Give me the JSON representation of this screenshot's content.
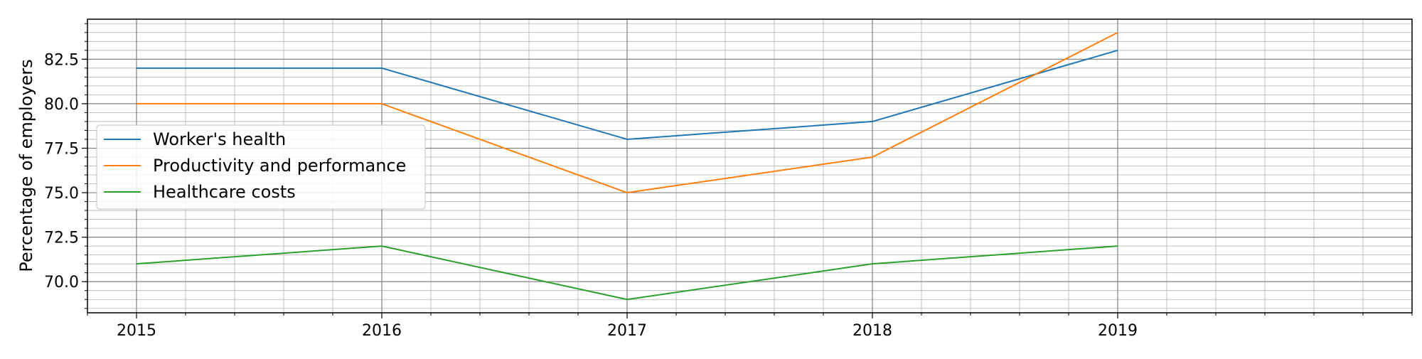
{
  "chart_data": {
    "type": "line",
    "title": "",
    "xlabel": "",
    "ylabel": "Percentage of employers",
    "x": [
      2015,
      2016,
      2017,
      2018,
      2019
    ],
    "xticks": [
      "2015",
      "2016",
      "2017",
      "2018",
      "2019"
    ],
    "xlim": [
      2014.8,
      2020.2
    ],
    "ylim": [
      68.25,
      84.75
    ],
    "yticks": [
      "70.0",
      "72.5",
      "75.0",
      "77.5",
      "80.0",
      "82.5"
    ],
    "grid": true,
    "minor_grid": true,
    "legend_position": "center-left",
    "series": [
      {
        "name": "Worker's health",
        "values": [
          82,
          82,
          78,
          79,
          83
        ],
        "color": "#1f77b4"
      },
      {
        "name": "Productivity and performance",
        "values": [
          80,
          80,
          75,
          77,
          84
        ],
        "color": "#ff7f0e"
      },
      {
        "name": "Healthcare costs",
        "values": [
          71,
          72,
          69,
          71,
          72
        ],
        "color": "#2ca02c"
      }
    ]
  }
}
